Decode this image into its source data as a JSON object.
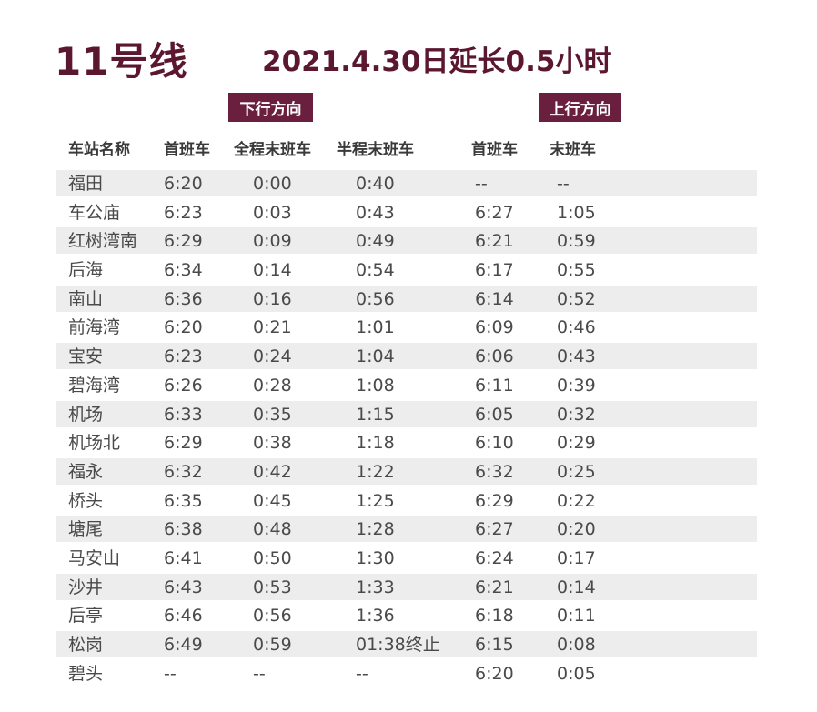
{
  "title": {
    "line": "11号线",
    "note": "2021.4.30日延长0.5小时"
  },
  "directions": {
    "down": "下行方向",
    "up": "上行方向"
  },
  "columns": [
    "车站名称",
    "首班车",
    "全程末班车",
    "半程末班车",
    "首班车",
    "末班车"
  ],
  "rows": [
    [
      "福田",
      "6:20",
      "0:00",
      "0:40",
      "--",
      "--"
    ],
    [
      "车公庙",
      "6:23",
      "0:03",
      "0:43",
      "6:27",
      "1:05"
    ],
    [
      "红树湾南",
      "6:29",
      "0:09",
      "0:49",
      "6:21",
      "0:59"
    ],
    [
      "后海",
      "6:34",
      "0:14",
      "0:54",
      "6:17",
      "0:55"
    ],
    [
      "南山",
      "6:36",
      "0:16",
      "0:56",
      "6:14",
      "0:52"
    ],
    [
      "前海湾",
      "6:20",
      "0:21",
      "1:01",
      "6:09",
      "0:46"
    ],
    [
      "宝安",
      "6:23",
      "0:24",
      "1:04",
      "6:06",
      "0:43"
    ],
    [
      "碧海湾",
      "6:26",
      "0:28",
      "1:08",
      "6:11",
      "0:39"
    ],
    [
      "机场",
      "6:33",
      "0:35",
      "1:15",
      "6:05",
      "0:32"
    ],
    [
      "机场北",
      "6:29",
      "0:38",
      "1:18",
      "6:10",
      "0:29"
    ],
    [
      "福永",
      "6:32",
      "0:42",
      "1:22",
      "6:32",
      "0:25"
    ],
    [
      "桥头",
      "6:35",
      "0:45",
      "1:25",
      "6:29",
      "0:22"
    ],
    [
      "塘尾",
      "6:38",
      "0:48",
      "1:28",
      "6:27",
      "0:20"
    ],
    [
      "马安山",
      "6:41",
      "0:50",
      "1:30",
      "6:24",
      "0:17"
    ],
    [
      "沙井",
      "6:43",
      "0:53",
      "1:33",
      "6:21",
      "0:14"
    ],
    [
      "后亭",
      "6:46",
      "0:56",
      "1:36",
      "6:18",
      "0:11"
    ],
    [
      "松岗",
      "6:49",
      "0:59",
      "01:38终止",
      "6:15",
      "0:08"
    ],
    [
      "碧头",
      "--",
      "--",
      "--",
      "6:20",
      "0:05"
    ]
  ],
  "colors": {
    "accent": "#6b1f3f",
    "title": "#5b1730",
    "band": "#ededed"
  }
}
